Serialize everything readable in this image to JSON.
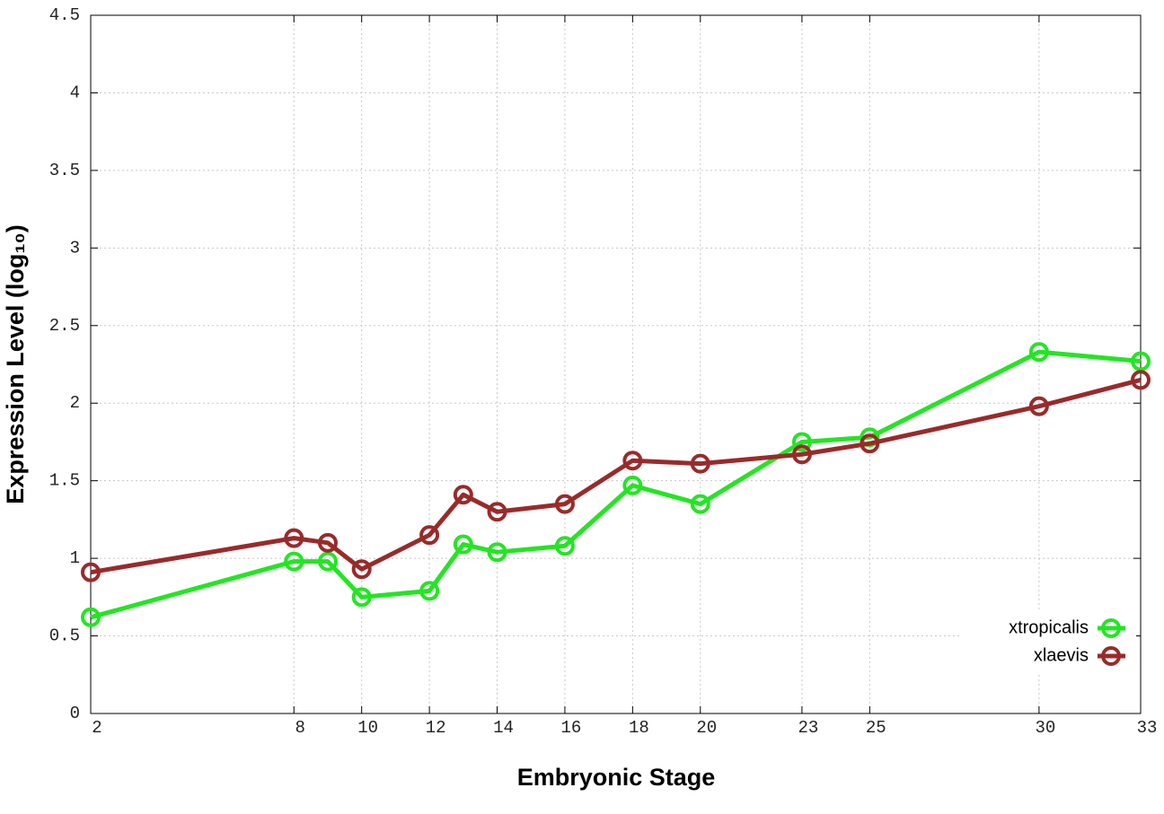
{
  "chart_data": {
    "type": "line",
    "xlabel": "Embryonic Stage",
    "ylabel": "Expression Level (log₁₀)",
    "x": [
      2,
      8,
      9,
      10,
      12,
      13,
      14,
      16,
      18,
      20,
      23,
      25,
      30,
      33
    ],
    "series": [
      {
        "name": "xtropicalis",
        "color": "#22e622",
        "values": [
          0.62,
          0.98,
          0.98,
          0.75,
          0.79,
          1.09,
          1.04,
          1.08,
          1.47,
          1.35,
          1.75,
          1.78,
          2.33,
          2.27
        ]
      },
      {
        "name": "xlaevis",
        "color": "#9a2a2a",
        "values": [
          0.91,
          1.13,
          1.1,
          0.93,
          1.15,
          1.41,
          1.3,
          1.35,
          1.63,
          1.61,
          1.67,
          1.74,
          1.98,
          2.15
        ]
      }
    ],
    "xlim": [
      2,
      33
    ],
    "xticks": [
      2,
      8,
      10,
      12,
      14,
      16,
      18,
      20,
      23,
      25,
      30,
      33
    ],
    "ylim": [
      0,
      4.5
    ],
    "yticks": [
      0,
      0.5,
      1,
      1.5,
      2,
      2.5,
      3,
      3.5,
      4,
      4.5
    ],
    "grid": true,
    "legend": "lower right"
  }
}
